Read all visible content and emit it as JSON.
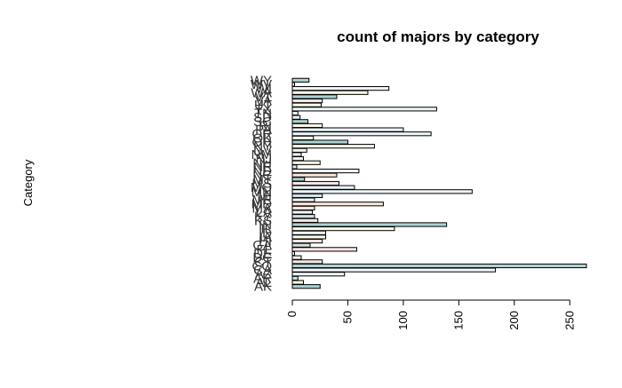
{
  "chart_data": {
    "type": "bar",
    "orientation": "horizontal",
    "title": "count of majors by category",
    "ylabel": "Category",
    "xlabel": "",
    "xlim": [
      0,
      265
    ],
    "xticks": [
      0,
      50,
      100,
      150,
      200,
      250
    ],
    "categories": [
      "AK",
      "AL",
      "AR",
      "AZ",
      "CA",
      "CO",
      "CT",
      "DC",
      "DE",
      "FL",
      "GA",
      "HI",
      "IA",
      "ID",
      "IL",
      "IN",
      "KS",
      "KY",
      "LA",
      "MA",
      "MD",
      "ME",
      "MI",
      "MN",
      "MO",
      "MS",
      "MT",
      "NC",
      "ND",
      "NE",
      "NH",
      "NJ",
      "NM",
      "NV",
      "NY",
      "OH",
      "OK",
      "OR",
      "PA",
      "RI",
      "SC",
      "SD",
      "TN",
      "TX",
      "UT",
      "VA",
      "VT",
      "WA",
      "WI",
      "WV",
      "WY"
    ],
    "values": [
      25,
      10,
      5,
      47,
      183,
      265,
      27,
      8,
      2,
      58,
      16,
      27,
      30,
      30,
      92,
      139,
      23,
      20,
      18,
      20,
      82,
      20,
      27,
      162,
      56,
      42,
      11,
      40,
      60,
      4,
      25,
      10,
      8,
      13,
      74,
      50,
      19,
      125,
      100,
      27,
      14,
      7,
      5,
      130,
      26,
      27,
      40,
      68,
      87,
      2,
      15
    ],
    "bar_colors": [
      "#a6cfd0",
      "#fbf8e6",
      "#cfe2e3",
      "#eef5f8",
      "#f2f8fc",
      "#aed2d3",
      "#f6e6e6",
      "#f6f2ea",
      "#ffffff",
      "#fbe6e6",
      "#cfe2e3",
      "#f6e6e6",
      "#fbf8e6",
      "#eef5f8",
      "#fbf8e6",
      "#aed2d3",
      "#fbe6e6",
      "#cfe2e3",
      "#eef5f8",
      "#f6e6e6",
      "#fbe6d8",
      "#eef5f8",
      "#cfe2e3",
      "#eef5f8",
      "#eef5f8",
      "#f6e6e6",
      "#a6cfd0",
      "#fbe6d8",
      "#eef5f8",
      "#f6e6e6",
      "#fbf8e6",
      "#eef5f8",
      "#fbf8e6",
      "#eef5f8",
      "#fbf8e6",
      "#aed2d3",
      "#fbf8e6",
      "#eef5f8",
      "#eef5f8",
      "#fbf8e6",
      "#aed2d3",
      "#eef5f8",
      "#eef5f8",
      "#eef5f8",
      "#fbf8e6",
      "#f6e6e6",
      "#aed2d3",
      "#fbf8e6",
      "#eef5f8",
      "#fbf8e6",
      "#aed2d3"
    ],
    "grid": false,
    "legend": "none"
  }
}
